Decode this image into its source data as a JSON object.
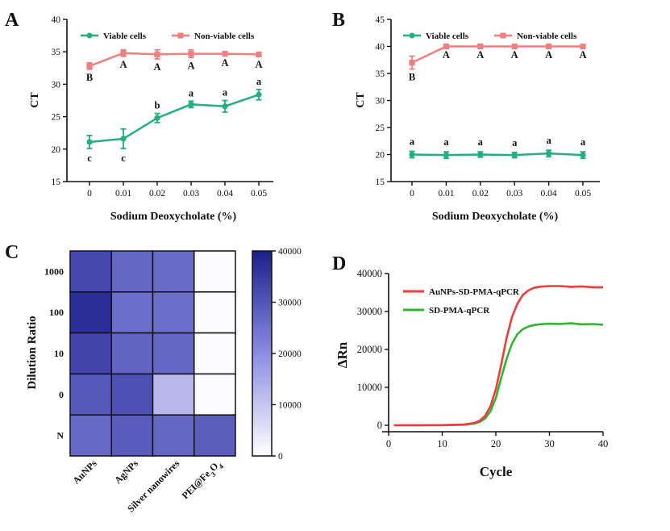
{
  "colors": {
    "viable": "#22b07d",
    "nonviable": "#f08080",
    "auNPs_curve": "#ee3b3b",
    "sd_curve": "#2fb52f",
    "heat_low": "#ffffff",
    "heat_mid": "#8c8ce4",
    "heat_high": "#1c1f8a"
  },
  "panel_labels": {
    "a": "A",
    "b": "B",
    "c": "C",
    "d": "D"
  },
  "chart_data": [
    {
      "id": "A",
      "type": "line",
      "xlabel": "Sodium Deoxycholate (%)",
      "ylabel": "CT",
      "categories": [
        "0",
        "0.01",
        "0.02",
        "0.03",
        "0.04",
        "0.05"
      ],
      "ylim": [
        15,
        40
      ],
      "yticks": [
        15,
        20,
        25,
        30,
        35,
        40
      ],
      "legend": [
        "Viable cells",
        "Non-viable cells"
      ],
      "series": [
        {
          "name": "Viable cells",
          "color_key": "viable",
          "values": [
            21.1,
            21.6,
            24.8,
            26.9,
            26.6,
            28.4
          ],
          "errors": [
            1.0,
            1.5,
            0.7,
            0.5,
            0.9,
            0.8
          ],
          "letters": [
            "c",
            "c",
            "b",
            "a",
            "a",
            "a"
          ]
        },
        {
          "name": "Non-viable cells",
          "color_key": "nonviable",
          "values": [
            32.8,
            34.8,
            34.6,
            34.7,
            34.7,
            34.6
          ],
          "errors": [
            0.5,
            0.5,
            0.7,
            0.6,
            0.2,
            0.3
          ],
          "letters": [
            "B",
            "A",
            "A",
            "A",
            "A",
            "A"
          ]
        }
      ]
    },
    {
      "id": "B",
      "type": "line",
      "xlabel": "Sodium Deoxycholate (%)",
      "ylabel": "CT",
      "categories": [
        "0",
        "0.01",
        "0.02",
        "0.03",
        "0.04",
        "0.05"
      ],
      "ylim": [
        15,
        45
      ],
      "yticks": [
        15,
        20,
        25,
        30,
        35,
        40,
        45
      ],
      "legend": [
        "Viable cells",
        "Non-viable cells"
      ],
      "series": [
        {
          "name": "Viable cells",
          "color_key": "viable",
          "values": [
            20.0,
            19.9,
            20.0,
            19.9,
            20.2,
            19.9
          ],
          "errors": [
            0.6,
            0.6,
            0.5,
            0.5,
            0.6,
            0.6
          ],
          "letters": [
            "a",
            "a",
            "a",
            "a",
            "a",
            "a"
          ]
        },
        {
          "name": "Non-viable cells",
          "color_key": "nonviable",
          "values": [
            37.0,
            40.0,
            40.0,
            40.0,
            40.0,
            40.0
          ],
          "errors": [
            1.2,
            0.1,
            0.1,
            0.1,
            0.1,
            0.1
          ],
          "letters": [
            "B",
            "A",
            "A",
            "A",
            "A",
            "A"
          ]
        }
      ]
    },
    {
      "id": "C",
      "type": "heatmap",
      "ylabel": "Dilution Ratio",
      "columns": [
        "AuNPs",
        "AgNPs",
        "Silver nanowires",
        "PEI@Fe3O4"
      ],
      "rows": [
        "1000",
        "100",
        "10",
        "0",
        "N"
      ],
      "values": [
        [
          32500,
          27000,
          26000,
          500
        ],
        [
          37500,
          25500,
          25500,
          500
        ],
        [
          33000,
          27500,
          27000,
          500
        ],
        [
          29500,
          31000,
          12500,
          500
        ],
        [
          26500,
          29000,
          27000,
          28500
        ]
      ],
      "colorbar": {
        "min": 0,
        "max": 40000,
        "ticks": [
          0,
          10000,
          20000,
          30000,
          40000
        ]
      }
    },
    {
      "id": "D",
      "type": "line",
      "xlabel": "Cycle",
      "ylabel": "ΔRn",
      "xlim": [
        0,
        40
      ],
      "xticks": [
        0,
        10,
        20,
        30,
        40
      ],
      "ylim": [
        0,
        40000
      ],
      "yticks": [
        0,
        10000,
        20000,
        30000,
        40000
      ],
      "legend": [
        "AuNPs-SD-PMA-qPCR",
        "SD-PMA-qPCR"
      ],
      "series": [
        {
          "name": "AuNPs-SD-PMA-qPCR",
          "color_key": "auNPs_curve",
          "x": [
            1,
            5,
            10,
            14,
            16,
            17,
            18,
            19,
            20,
            21,
            22,
            23,
            24,
            25,
            26,
            27,
            28,
            29,
            30,
            32,
            34,
            36,
            38,
            40
          ],
          "y": [
            0,
            0,
            50,
            200,
            600,
            1200,
            2500,
            5000,
            9500,
            16000,
            23000,
            28500,
            32000,
            34300,
            35500,
            36200,
            36500,
            36600,
            36700,
            36700,
            36500,
            36600,
            36400,
            36400
          ]
        },
        {
          "name": "SD-PMA-qPCR",
          "color_key": "sd_curve",
          "x": [
            1,
            5,
            10,
            14,
            16,
            17,
            18,
            19,
            20,
            21,
            22,
            23,
            24,
            25,
            26,
            27,
            28,
            29,
            30,
            32,
            34,
            36,
            38,
            40
          ],
          "y": [
            0,
            0,
            30,
            150,
            450,
            900,
            1800,
            3700,
            7200,
            12500,
            17500,
            21500,
            24000,
            25300,
            26000,
            26400,
            26600,
            26700,
            26800,
            26700,
            26900,
            26600,
            26700,
            26500
          ]
        }
      ]
    }
  ]
}
